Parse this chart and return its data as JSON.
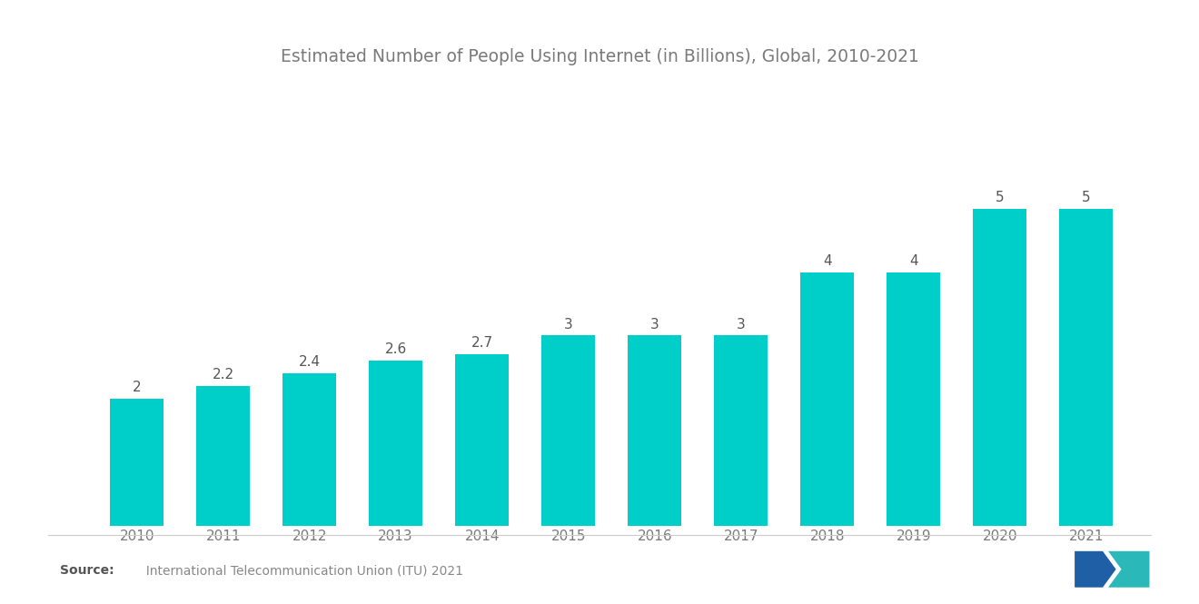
{
  "title": "Estimated Number of People Using Internet (in Billions), Global, 2010-2021",
  "years": [
    2010,
    2011,
    2012,
    2013,
    2014,
    2015,
    2016,
    2017,
    2018,
    2019,
    2020,
    2021
  ],
  "values": [
    2.0,
    2.2,
    2.4,
    2.6,
    2.7,
    3.0,
    3.0,
    3.0,
    4.0,
    4.0,
    5.0,
    5.0
  ],
  "labels": [
    "2",
    "2.2",
    "2.4",
    "2.6",
    "2.7",
    "3",
    "3",
    "3",
    "4",
    "4",
    "5",
    "5"
  ],
  "bar_color": "#00CEC8",
  "background_color": "#ffffff",
  "title_fontsize": 13.5,
  "label_fontsize": 11,
  "tick_fontsize": 11,
  "source_bold": "Source:",
  "source_normal": "  International Telecommunication Union (ITU) 2021",
  "ylim": [
    0,
    6.2
  ],
  "title_color": "#7a7a7a",
  "tick_color": "#7a7a7a",
  "label_color": "#555555"
}
